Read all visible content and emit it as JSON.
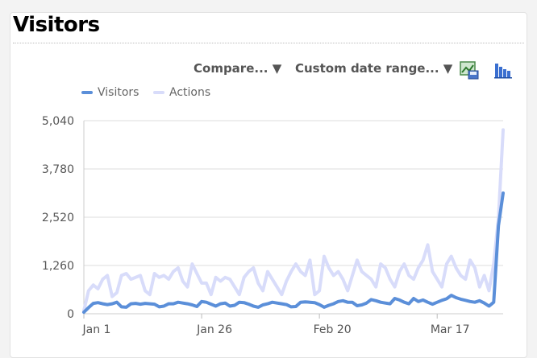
{
  "widget": {
    "title": "Visitors"
  },
  "toolbar": {
    "compare_label": "Compare... ▼",
    "daterange_label": "Custom date range... ▼",
    "export_icon": "export-image-icon",
    "chart_type_icon": "bar-chart-icon"
  },
  "colors": {
    "visitors": "#5b8fd9",
    "actions": "#d8dcfa",
    "grid": "#dddddd",
    "axis_text": "#555555"
  },
  "chart_data": {
    "type": "line",
    "title": "",
    "xlabel": "",
    "ylabel": "",
    "ylim": [
      0,
      5040
    ],
    "yticks": [
      0,
      1260,
      2520,
      3780,
      5040
    ],
    "ytick_labels": [
      "0",
      "1,260",
      "2,520",
      "3,780",
      "5,040"
    ],
    "xticks": [
      {
        "label": "Jan 1",
        "index": 0
      },
      {
        "label": "Jan 26",
        "index": 25
      },
      {
        "label": "Feb 20",
        "index": 50
      },
      {
        "label": "Mar 17",
        "index": 75
      }
    ],
    "legend_position": "top-left",
    "series": [
      {
        "name": "Visitors",
        "values": [
          40,
          160,
          270,
          290,
          260,
          240,
          260,
          300,
          180,
          170,
          260,
          270,
          250,
          270,
          260,
          250,
          180,
          200,
          260,
          260,
          300,
          280,
          260,
          230,
          190,
          320,
          300,
          250,
          200,
          260,
          280,
          200,
          220,
          300,
          290,
          250,
          200,
          170,
          230,
          260,
          300,
          280,
          260,
          240,
          180,
          190,
          300,
          310,
          300,
          290,
          240,
          170,
          220,
          260,
          320,
          340,
          300,
          300,
          210,
          230,
          280,
          370,
          340,
          300,
          280,
          260,
          400,
          360,
          300,
          260,
          400,
          320,
          360,
          300,
          250,
          300,
          350,
          390,
          480,
          420,
          380,
          350,
          320,
          300,
          340,
          280,
          200,
          300,
          2300,
          3150
        ]
      },
      {
        "name": "Actions",
        "values": [
          80,
          600,
          750,
          650,
          900,
          1000,
          450,
          550,
          1000,
          1050,
          900,
          950,
          1000,
          600,
          500,
          1050,
          950,
          1000,
          900,
          1100,
          1200,
          850,
          700,
          1300,
          1050,
          800,
          800,
          500,
          950,
          850,
          950,
          900,
          700,
          500,
          950,
          1100,
          1200,
          800,
          600,
          1100,
          900,
          700,
          500,
          850,
          1100,
          1300,
          1100,
          1000,
          1400,
          500,
          600,
          1500,
          1200,
          1000,
          1100,
          900,
          600,
          1000,
          1400,
          1100,
          1000,
          900,
          700,
          1300,
          1200,
          900,
          700,
          1100,
          1300,
          1000,
          900,
          1200,
          1400,
          1800,
          1100,
          900,
          700,
          1300,
          1500,
          1200,
          1000,
          900,
          1400,
          1200,
          700,
          1000,
          600,
          1300,
          2500,
          4800
        ]
      }
    ]
  }
}
